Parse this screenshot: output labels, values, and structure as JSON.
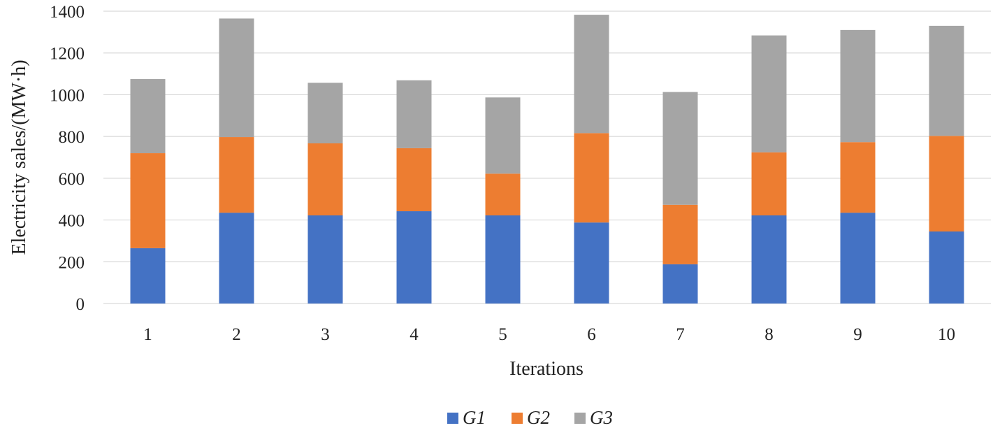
{
  "chart_data": {
    "type": "bar",
    "stacked": true,
    "title": "",
    "xlabel": "Iterations",
    "ylabel": "Electricity sales/(MW·h)",
    "ylim": [
      0,
      1400
    ],
    "yticks": [
      0,
      200,
      400,
      600,
      800,
      1000,
      1200,
      1400
    ],
    "categories": [
      "1",
      "2",
      "3",
      "4",
      "5",
      "6",
      "7",
      "8",
      "9",
      "10"
    ],
    "series": [
      {
        "name": "G1",
        "color": "#4472c4",
        "values": [
          265,
          435,
          422,
          442,
          422,
          388,
          188,
          422,
          435,
          345
        ]
      },
      {
        "name": "G2",
        "color": "#ed7d31",
        "values": [
          455,
          362,
          345,
          302,
          200,
          428,
          285,
          302,
          338,
          458
        ]
      },
      {
        "name": "G3",
        "color": "#a5a5a5",
        "values": [
          355,
          568,
          290,
          325,
          365,
          567,
          540,
          560,
          537,
          527
        ]
      }
    ],
    "grid": true,
    "legend": "bottom"
  }
}
